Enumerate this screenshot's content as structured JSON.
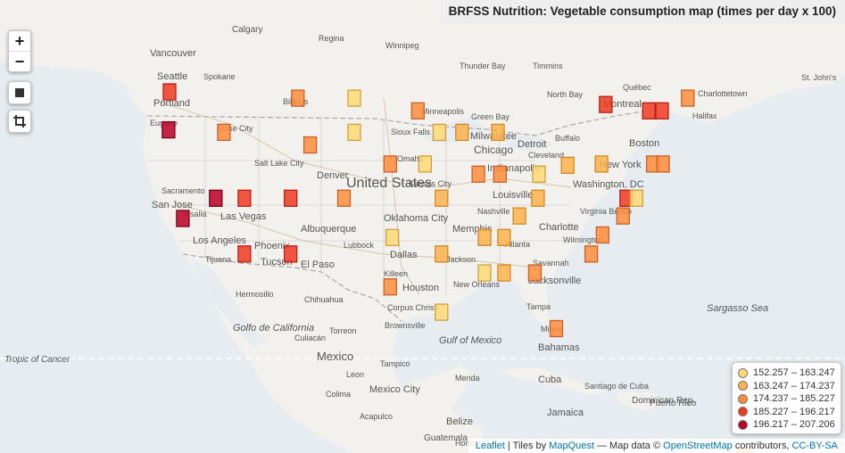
{
  "title": "BRFSS Nutrition: Vegetable consumption map (times per day x 100)",
  "controls": {
    "zoom_in": "+",
    "zoom_out": "−"
  },
  "legend": [
    {
      "label": "152.257 – 163.247",
      "color": "#fed976"
    },
    {
      "label": "163.247 – 174.237",
      "color": "#feb24c"
    },
    {
      "label": "174.237 – 185.227",
      "color": "#fd8d3c"
    },
    {
      "label": "185.227 – 196.217",
      "color": "#f03b20"
    },
    {
      "label": "196.217 – 207.206",
      "color": "#bd0026"
    }
  ],
  "attribution": {
    "leaflet": "Leaflet",
    "tiles_prefix": " | Tiles by ",
    "mapquest": "MapQuest",
    "data_prefix": " — Map data © ",
    "osm": "OpenStreetMap",
    "contrib": " contributors, ",
    "license": "CC-BY-SA"
  },
  "place_labels": [
    "Calgary",
    "Regina",
    "Winnipeg",
    "Vancouver",
    "Seattle",
    "Spokane",
    "Thunder Bay",
    "Timmins",
    "Portland",
    "Billings",
    "North Bay",
    "Québec",
    "Charlottetown",
    "St. John's",
    "Montreal",
    "Halifax",
    "Eugene",
    "Boise City",
    "Minneapolis",
    "Green Bay",
    "Sioux Falls",
    "Milwaukee",
    "Detroit",
    "Buffalo",
    "Boston",
    "Salt Lake City",
    "Chicago",
    "Cleveland",
    "New York",
    "Denver",
    "United States",
    "Omaha",
    "Indianapolis",
    "Washington, DC",
    "Kansas City",
    "Louisville",
    "Sacramento",
    "San Jose",
    "Las Vegas",
    "Oklahoma City",
    "Nashville",
    "Virginia Beach",
    "Visalia",
    "Albuquerque",
    "Memphis",
    "Charlotte",
    "Los Angeles",
    "Phoenix",
    "Lubbock",
    "Atlanta",
    "Wilmington",
    "Tijuana",
    "Tucson",
    "El Paso",
    "Dallas",
    "Jackson",
    "Savannah",
    "Killeen",
    "New Orleans",
    "Jacksonville",
    "Houston",
    "Hermosillo",
    "Chihuahua",
    "Corpus Christi",
    "Tampa",
    "Sargasso Sea",
    "Golfo de California",
    "Brownsville",
    "Miami",
    "Culiacán",
    "Torreon",
    "Gulf of Mexico",
    "Bahamas",
    "Tropic of Cancer",
    "Mexico",
    "Tampico",
    "Leon",
    "Merida",
    "Cuba",
    "Santiago de Cuba",
    "Colima",
    "Mexico City",
    "Dominican Rep.",
    "Puerto Rico",
    "Jamaica",
    "Acapulco",
    "Belize",
    "Guatemala",
    "Honduras"
  ],
  "data_cells": [
    {
      "lon": -122.5,
      "lat": 47.0,
      "cls": 4
    },
    {
      "lon": -122.6,
      "lat": 44.0,
      "cls": 5
    },
    {
      "lon": -117.2,
      "lat": 43.8,
      "cls": 3
    },
    {
      "lon": -110.0,
      "lat": 46.5,
      "cls": 3
    },
    {
      "lon": -104.5,
      "lat": 46.5,
      "cls": 1
    },
    {
      "lon": -108.8,
      "lat": 42.8,
      "cls": 3
    },
    {
      "lon": -104.5,
      "lat": 43.8,
      "cls": 1
    },
    {
      "lon": -98.3,
      "lat": 45.5,
      "cls": 3
    },
    {
      "lon": -96.2,
      "lat": 43.8,
      "cls": 1
    },
    {
      "lon": -94.0,
      "lat": 43.8,
      "cls": 2
    },
    {
      "lon": -90.5,
      "lat": 43.8,
      "cls": 2
    },
    {
      "lon": -101.0,
      "lat": 41.3,
      "cls": 3
    },
    {
      "lon": -97.6,
      "lat": 41.3,
      "cls": 1
    },
    {
      "lon": -92.4,
      "lat": 40.5,
      "cls": 3
    },
    {
      "lon": -90.3,
      "lat": 40.5,
      "cls": 3
    },
    {
      "lon": -86.5,
      "lat": 40.5,
      "cls": 1
    },
    {
      "lon": -83.7,
      "lat": 41.2,
      "cls": 2
    },
    {
      "lon": -118.0,
      "lat": 38.6,
      "cls": 5
    },
    {
      "lon": -115.2,
      "lat": 38.6,
      "cls": 4
    },
    {
      "lon": -110.7,
      "lat": 38.6,
      "cls": 4
    },
    {
      "lon": -105.5,
      "lat": 38.6,
      "cls": 3
    },
    {
      "lon": -96.0,
      "lat": 38.6,
      "cls": 2
    },
    {
      "lon": -86.6,
      "lat": 38.6,
      "cls": 2
    },
    {
      "lon": -78.0,
      "lat": 38.6,
      "cls": 4
    },
    {
      "lon": -77.0,
      "lat": 38.6,
      "cls": 1
    },
    {
      "lon": -121.2,
      "lat": 37.0,
      "cls": 5
    },
    {
      "lon": -88.4,
      "lat": 37.2,
      "cls": 2
    },
    {
      "lon": -78.3,
      "lat": 37.2,
      "cls": 3
    },
    {
      "lon": -115.2,
      "lat": 34.2,
      "cls": 4
    },
    {
      "lon": -110.7,
      "lat": 34.2,
      "cls": 4
    },
    {
      "lon": -100.8,
      "lat": 35.5,
      "cls": 1
    },
    {
      "lon": -96.0,
      "lat": 34.2,
      "cls": 2
    },
    {
      "lon": -91.8,
      "lat": 35.5,
      "cls": 2
    },
    {
      "lon": -89.9,
      "lat": 35.5,
      "cls": 2
    },
    {
      "lon": -81.4,
      "lat": 34.2,
      "cls": 3
    },
    {
      "lon": -80.3,
      "lat": 35.7,
      "cls": 3
    },
    {
      "lon": -101.0,
      "lat": 31.6,
      "cls": 3
    },
    {
      "lon": -91.8,
      "lat": 32.7,
      "cls": 1
    },
    {
      "lon": -89.9,
      "lat": 32.7,
      "cls": 2
    },
    {
      "lon": -86.9,
      "lat": 32.7,
      "cls": 3
    },
    {
      "lon": -96.0,
      "lat": 29.6,
      "cls": 1
    },
    {
      "lon": -84.8,
      "lat": 28.3,
      "cls": 3
    },
    {
      "lon": -80.0,
      "lat": 46.0,
      "cls": 4
    },
    {
      "lon": -75.8,
      "lat": 45.5,
      "cls": 4
    },
    {
      "lon": -74.5,
      "lat": 45.5,
      "cls": 4
    },
    {
      "lon": -72.0,
      "lat": 46.5,
      "cls": 3
    },
    {
      "lon": -80.4,
      "lat": 41.3,
      "cls": 2
    },
    {
      "lon": -75.4,
      "lat": 41.3,
      "cls": 3
    },
    {
      "lon": -74.4,
      "lat": 41.3,
      "cls": 3
    },
    {
      "lon": -66.5,
      "lat": 18.2,
      "cls": 2
    }
  ]
}
